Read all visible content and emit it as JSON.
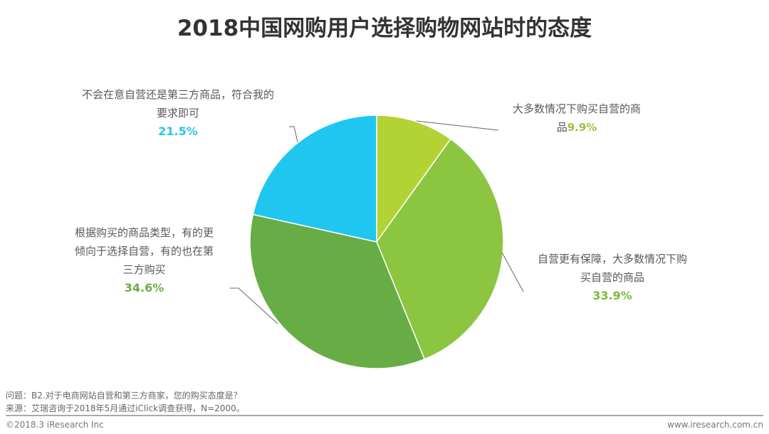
{
  "chart_data": {
    "type": "pie",
    "title": "2018中国网购用户选择购物网站时的态度",
    "slices": [
      {
        "label": "大多数情况下购买自营的商品",
        "value": 9.9,
        "display": "9.9%",
        "color": "#b3d335"
      },
      {
        "label": "自营更有保障，大多数情况下购买自营的商品",
        "value": 33.9,
        "display": "33.9%",
        "color": "#8cc540"
      },
      {
        "label": "根据购买的商品类型，有的更倾向于选择自营，有的也在第三方购买",
        "value": 34.6,
        "display": "34.6%",
        "color": "#67ad45"
      },
      {
        "label": "不会在意自营还是第三方商品，符合我的要求即可",
        "value": 21.5,
        "display": "21.5%",
        "color": "#1fc6f0"
      }
    ]
  },
  "labels": {
    "s0_line1": "大多数情况下购买自营的商",
    "s0_line2": "品",
    "s1_line1": "自营更有保障，大多数情况下购",
    "s1_line2": "买自营的商品",
    "s2_line1": "根据购买的商品类型，有的更",
    "s2_line2": "倾向于选择自营，有的也在第",
    "s2_line3": "三方购买",
    "s3_line1": "不会在意自营还是第三方商品，符合我的",
    "s3_line2": "要求即可"
  },
  "footer": {
    "question": "问题：B2.对于电商网站自营和第三方商家，您的购买态度是？",
    "source": "来源：艾瑞咨询于2018年5月通过iClick调查获得，N=2000。",
    "copyright": "©2018.3 iResearch Inc",
    "website": "www.iresearch.com.cn"
  }
}
